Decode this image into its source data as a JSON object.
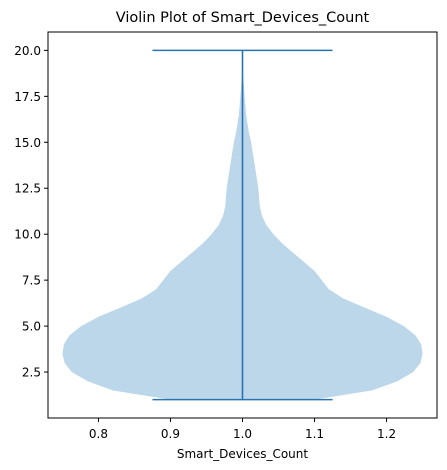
{
  "chart_data": {
    "type": "violin",
    "title": "Violin Plot of Smart_Devices_Count",
    "xlabel": "Smart_Devices_Count",
    "ylabel": "",
    "position": 1.0,
    "xlim": [
      0.73,
      1.27
    ],
    "ylim": [
      0.0,
      21.0
    ],
    "x_ticks": [
      0.8,
      0.9,
      1.0,
      1.1,
      1.2
    ],
    "x_tick_labels": [
      "0.8",
      "0.9",
      "1.0",
      "1.1",
      "1.2"
    ],
    "y_ticks": [
      2.5,
      5.0,
      7.5,
      10.0,
      12.5,
      15.0,
      17.5,
      20.0
    ],
    "y_tick_labels": [
      "2.5",
      "5.0",
      "7.5",
      "10.0",
      "12.5",
      "15.0",
      "17.5",
      "20.0"
    ],
    "min": 1.0,
    "max": 20.0,
    "cap_half_width": 0.125,
    "density_profile": [
      {
        "y": 1.0,
        "half_width": 0.1
      },
      {
        "y": 1.5,
        "half_width": 0.18
      },
      {
        "y": 2.0,
        "half_width": 0.215
      },
      {
        "y": 2.5,
        "half_width": 0.237
      },
      {
        "y": 3.0,
        "half_width": 0.247
      },
      {
        "y": 3.5,
        "half_width": 0.25
      },
      {
        "y": 4.0,
        "half_width": 0.248
      },
      {
        "y": 4.5,
        "half_width": 0.24
      },
      {
        "y": 5.0,
        "half_width": 0.224
      },
      {
        "y": 5.5,
        "half_width": 0.2
      },
      {
        "y": 6.0,
        "half_width": 0.17
      },
      {
        "y": 6.5,
        "half_width": 0.14
      },
      {
        "y": 7.0,
        "half_width": 0.12
      },
      {
        "y": 7.5,
        "half_width": 0.11
      },
      {
        "y": 8.0,
        "half_width": 0.1
      },
      {
        "y": 8.5,
        "half_width": 0.085
      },
      {
        "y": 9.0,
        "half_width": 0.07
      },
      {
        "y": 9.5,
        "half_width": 0.055
      },
      {
        "y": 10.0,
        "half_width": 0.043
      },
      {
        "y": 10.5,
        "half_width": 0.033
      },
      {
        "y": 11.0,
        "half_width": 0.027
      },
      {
        "y": 11.5,
        "half_width": 0.024
      },
      {
        "y": 12.0,
        "half_width": 0.023
      },
      {
        "y": 12.5,
        "half_width": 0.022
      },
      {
        "y": 13.0,
        "half_width": 0.02
      },
      {
        "y": 13.5,
        "half_width": 0.018
      },
      {
        "y": 14.0,
        "half_width": 0.016
      },
      {
        "y": 14.5,
        "half_width": 0.014
      },
      {
        "y": 15.0,
        "half_width": 0.012
      },
      {
        "y": 15.5,
        "half_width": 0.009
      },
      {
        "y": 16.0,
        "half_width": 0.007
      },
      {
        "y": 16.5,
        "half_width": 0.005
      },
      {
        "y": 17.0,
        "half_width": 0.004
      },
      {
        "y": 17.5,
        "half_width": 0.003
      },
      {
        "y": 18.0,
        "half_width": 0.002
      },
      {
        "y": 18.5,
        "half_width": 0.001
      },
      {
        "y": 19.0,
        "half_width": 0.0
      }
    ],
    "colors": {
      "body_fill": "#bcd6ea",
      "line": "#2a73b2"
    }
  }
}
